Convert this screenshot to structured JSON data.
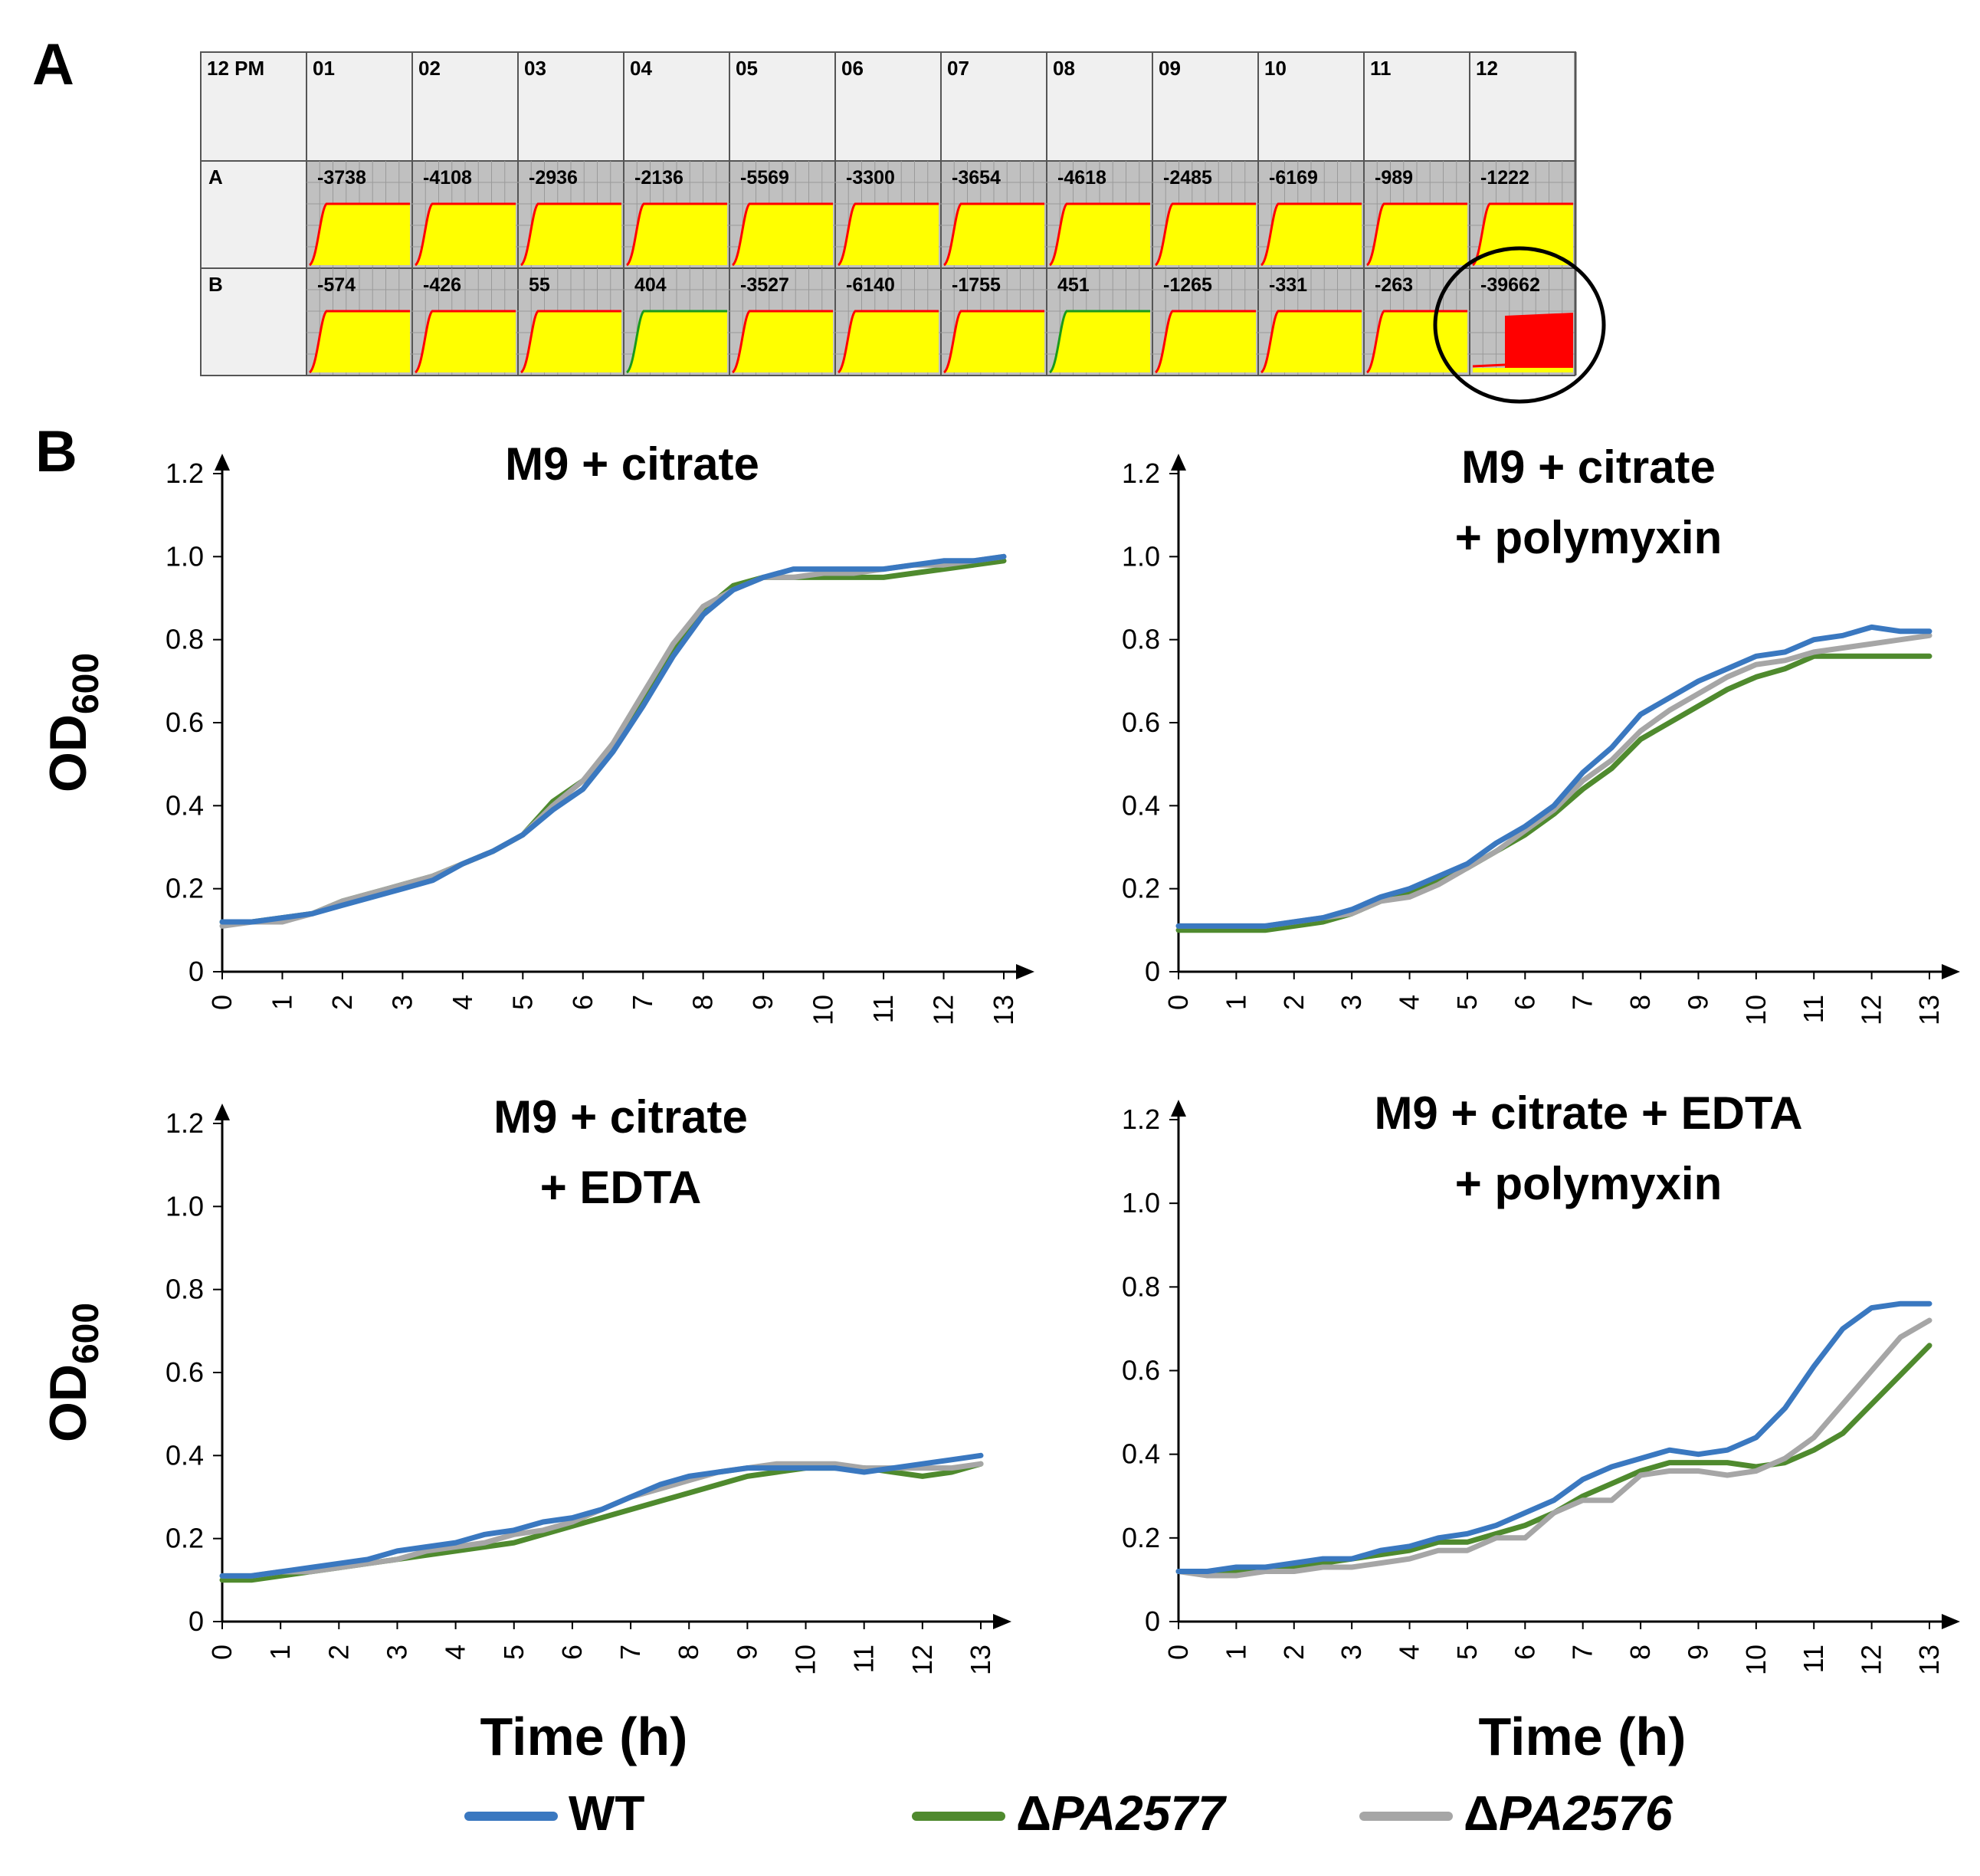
{
  "panel_labels": {
    "a": "A",
    "b": "B"
  },
  "plate": {
    "corner_label": "12 PM",
    "columns": [
      "01",
      "02",
      "03",
      "04",
      "05",
      "06",
      "07",
      "08",
      "09",
      "10",
      "11",
      "12"
    ],
    "rows": [
      {
        "label": "A",
        "values": [
          "-3738",
          "-4108",
          "-2936",
          "-2136",
          "-5569",
          "-3300",
          "-3654",
          "-4618",
          "-2485",
          "-6169",
          "-989",
          "-1222"
        ]
      },
      {
        "label": "B",
        "values": [
          "-574",
          "-426",
          "55",
          "404",
          "-3527",
          "-6140",
          "-1755",
          "451",
          "-1265",
          "-331",
          "-263",
          "-39662"
        ]
      }
    ],
    "highlighted_well": "B12",
    "colors": {
      "yellow": "#ffff00",
      "red": "#ff0000",
      "green": "#1a9a1a",
      "header_bg": "#f0f0f0",
      "well_bg": "#c0c0c0",
      "circle": "#000000"
    }
  },
  "axis_labels": {
    "y_main": "OD",
    "y_sub": "600",
    "x": "Time (h)"
  },
  "series_colors": {
    "WT": "#3a78c0",
    "dPA2577": "#4f8a2e",
    "dPA2576": "#a6a6a6"
  },
  "legend": [
    {
      "key": "WT",
      "prefix": "",
      "name": "WT",
      "color": "#3a78c0"
    },
    {
      "key": "dPA2577",
      "prefix": "Δ",
      "name": "PA2577",
      "color": "#4f8a2e"
    },
    {
      "key": "dPA2576",
      "prefix": "Δ",
      "name": "PA2576",
      "color": "#a6a6a6"
    }
  ],
  "chart_data": [
    {
      "type": "line",
      "title_lines": [
        "M9 + citrate"
      ],
      "xlabel": "Time (h)",
      "ylabel": "OD600",
      "xlim": [
        0,
        13
      ],
      "ylim": [
        0,
        1.2
      ],
      "xticks": [
        "0",
        "1",
        "2",
        "3",
        "4",
        "5",
        "6",
        "7",
        "8",
        "9",
        "10",
        "11",
        "12",
        "13"
      ],
      "yticks": [
        "0",
        "0.2",
        "0.4",
        "0.6",
        "0.8",
        "1.0",
        "1.2"
      ],
      "x": [
        0,
        0.5,
        1,
        1.5,
        2,
        2.5,
        3,
        3.5,
        4,
        4.5,
        5,
        5.5,
        6,
        6.5,
        7,
        7.5,
        8,
        8.5,
        9,
        9.5,
        10,
        10.5,
        11,
        11.5,
        12,
        12.5,
        13
      ],
      "series": [
        {
          "name": "WT",
          "values": [
            0.12,
            0.12,
            0.13,
            0.14,
            0.16,
            0.18,
            0.2,
            0.22,
            0.26,
            0.29,
            0.33,
            0.39,
            0.44,
            0.53,
            0.64,
            0.76,
            0.86,
            0.92,
            0.95,
            0.97,
            0.97,
            0.97,
            0.97,
            0.98,
            0.99,
            0.99,
            1.0
          ]
        },
        {
          "name": "ΔPA2577",
          "values": [
            0.12,
            0.12,
            0.13,
            0.14,
            0.17,
            0.19,
            0.21,
            0.23,
            0.26,
            0.29,
            0.33,
            0.41,
            0.46,
            0.54,
            0.66,
            0.78,
            0.87,
            0.93,
            0.95,
            0.95,
            0.95,
            0.95,
            0.95,
            0.96,
            0.97,
            0.98,
            0.99
          ]
        },
        {
          "name": "ΔPA2576",
          "values": [
            0.11,
            0.12,
            0.12,
            0.14,
            0.17,
            0.19,
            0.21,
            0.23,
            0.26,
            0.29,
            0.33,
            0.4,
            0.46,
            0.55,
            0.67,
            0.79,
            0.88,
            0.92,
            0.95,
            0.95,
            0.96,
            0.96,
            0.97,
            0.98,
            0.98,
            0.99,
            1.0
          ]
        }
      ]
    },
    {
      "type": "line",
      "title_lines": [
        "M9 + citrate",
        "+ polymyxin"
      ],
      "xlabel": "Time (h)",
      "ylabel": "OD600",
      "xlim": [
        0,
        13
      ],
      "ylim": [
        0,
        1.2
      ],
      "xticks": [
        "0",
        "1",
        "2",
        "3",
        "4",
        "5",
        "6",
        "7",
        "8",
        "9",
        "10",
        "11",
        "12",
        "13"
      ],
      "yticks": [
        "0",
        "0.2",
        "0.4",
        "0.6",
        "0.8",
        "1.0",
        "1.2"
      ],
      "x": [
        0,
        0.5,
        1,
        1.5,
        2,
        2.5,
        3,
        3.5,
        4,
        4.5,
        5,
        5.5,
        6,
        6.5,
        7,
        7.5,
        8,
        8.5,
        9,
        9.5,
        10,
        10.5,
        11,
        11.5,
        12,
        12.5,
        13
      ],
      "series": [
        {
          "name": "WT",
          "values": [
            0.11,
            0.11,
            0.11,
            0.11,
            0.12,
            0.13,
            0.15,
            0.18,
            0.2,
            0.23,
            0.26,
            0.31,
            0.35,
            0.4,
            0.48,
            0.54,
            0.62,
            0.66,
            0.7,
            0.73,
            0.76,
            0.77,
            0.8,
            0.81,
            0.83,
            0.82,
            0.82
          ]
        },
        {
          "name": "ΔPA2577",
          "values": [
            0.1,
            0.1,
            0.1,
            0.1,
            0.11,
            0.12,
            0.14,
            0.17,
            0.19,
            0.22,
            0.25,
            0.29,
            0.33,
            0.38,
            0.44,
            0.49,
            0.56,
            0.6,
            0.64,
            0.68,
            0.71,
            0.73,
            0.76,
            0.76,
            0.76,
            0.76,
            0.76
          ]
        },
        {
          "name": "ΔPA2576",
          "values": [
            0.11,
            0.11,
            0.11,
            0.11,
            0.12,
            0.13,
            0.14,
            0.17,
            0.18,
            0.21,
            0.25,
            0.29,
            0.34,
            0.39,
            0.46,
            0.51,
            0.58,
            0.63,
            0.67,
            0.71,
            0.74,
            0.75,
            0.77,
            0.78,
            0.79,
            0.8,
            0.81
          ]
        }
      ]
    },
    {
      "type": "line",
      "title_lines": [
        "M9 + citrate",
        "+ EDTA"
      ],
      "xlabel": "Time (h)",
      "ylabel": "OD600",
      "xlim": [
        0,
        13
      ],
      "ylim": [
        0,
        1.2
      ],
      "xticks": [
        "0",
        "1",
        "2",
        "3",
        "4",
        "5",
        "6",
        "7",
        "8",
        "9",
        "10",
        "11",
        "12",
        "13"
      ],
      "yticks": [
        "0",
        "0.2",
        "0.4",
        "0.6",
        "0.8",
        "1.0",
        "1.2"
      ],
      "x": [
        0,
        0.5,
        1,
        1.5,
        2,
        2.5,
        3,
        3.5,
        4,
        4.5,
        5,
        5.5,
        6,
        6.5,
        7,
        7.5,
        8,
        8.5,
        9,
        9.5,
        10,
        10.5,
        11,
        11.5,
        12,
        12.5,
        13
      ],
      "series": [
        {
          "name": "WT",
          "values": [
            0.11,
            0.11,
            0.12,
            0.13,
            0.14,
            0.15,
            0.17,
            0.18,
            0.19,
            0.21,
            0.22,
            0.24,
            0.25,
            0.27,
            0.3,
            0.33,
            0.35,
            0.36,
            0.37,
            0.37,
            0.37,
            0.37,
            0.36,
            0.37,
            0.38,
            0.39,
            0.4
          ]
        },
        {
          "name": "ΔPA2577",
          "values": [
            0.1,
            0.1,
            0.11,
            0.12,
            0.13,
            0.14,
            0.15,
            0.16,
            0.17,
            0.18,
            0.19,
            0.21,
            0.23,
            0.25,
            0.27,
            0.29,
            0.31,
            0.33,
            0.35,
            0.36,
            0.37,
            0.37,
            0.37,
            0.36,
            0.35,
            0.36,
            0.38
          ]
        },
        {
          "name": "ΔPA2576",
          "values": [
            0.11,
            0.11,
            0.12,
            0.12,
            0.13,
            0.14,
            0.15,
            0.17,
            0.18,
            0.19,
            0.21,
            0.22,
            0.24,
            0.27,
            0.3,
            0.32,
            0.34,
            0.36,
            0.37,
            0.38,
            0.38,
            0.38,
            0.37,
            0.37,
            0.37,
            0.37,
            0.38
          ]
        }
      ]
    },
    {
      "type": "line",
      "title_lines": [
        "M9 + citrate + EDTA",
        "+ polymyxin"
      ],
      "xlabel": "Time (h)",
      "ylabel": "OD600",
      "xlim": [
        0,
        13
      ],
      "ylim": [
        0,
        1.2
      ],
      "xticks": [
        "0",
        "1",
        "2",
        "3",
        "4",
        "5",
        "6",
        "7",
        "8",
        "9",
        "10",
        "11",
        "12",
        "13"
      ],
      "yticks": [
        "0",
        "0.2",
        "0.4",
        "0.6",
        "0.8",
        "1.0",
        "1.2"
      ],
      "x": [
        0,
        0.5,
        1,
        1.5,
        2,
        2.5,
        3,
        3.5,
        4,
        4.5,
        5,
        5.5,
        6,
        6.5,
        7,
        7.5,
        8,
        8.5,
        9,
        9.5,
        10,
        10.5,
        11,
        11.5,
        12,
        12.5,
        13
      ],
      "series": [
        {
          "name": "WT",
          "values": [
            0.12,
            0.12,
            0.13,
            0.13,
            0.14,
            0.15,
            0.15,
            0.17,
            0.18,
            0.2,
            0.21,
            0.23,
            0.26,
            0.29,
            0.34,
            0.37,
            0.39,
            0.41,
            0.4,
            0.41,
            0.44,
            0.51,
            0.61,
            0.7,
            0.75,
            0.76,
            0.76
          ]
        },
        {
          "name": "ΔPA2577",
          "values": [
            0.12,
            0.12,
            0.12,
            0.13,
            0.13,
            0.14,
            0.15,
            0.16,
            0.17,
            0.19,
            0.19,
            0.21,
            0.23,
            0.26,
            0.3,
            0.33,
            0.36,
            0.38,
            0.38,
            0.38,
            0.37,
            0.38,
            0.41,
            0.45,
            0.52,
            0.59,
            0.66
          ]
        },
        {
          "name": "ΔPA2576",
          "values": [
            0.12,
            0.11,
            0.11,
            0.12,
            0.12,
            0.13,
            0.13,
            0.14,
            0.15,
            0.17,
            0.17,
            0.2,
            0.2,
            0.26,
            0.29,
            0.29,
            0.35,
            0.36,
            0.36,
            0.35,
            0.36,
            0.39,
            0.44,
            0.52,
            0.6,
            0.68,
            0.72
          ]
        }
      ]
    }
  ]
}
